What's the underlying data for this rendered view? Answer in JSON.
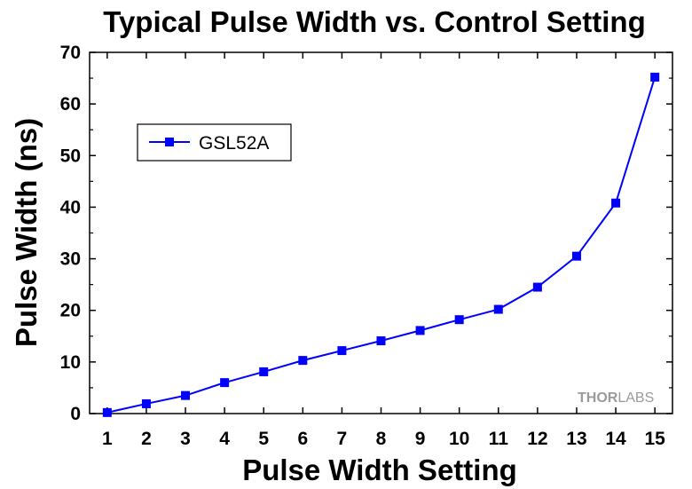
{
  "chart_data": {
    "type": "line",
    "title": "Typical Pulse Width vs. Control Setting",
    "xlabel": "Pulse Width Setting",
    "ylabel": "Pulse Width (ns)",
    "xlim": [
      0.55,
      15.45
    ],
    "ylim": [
      0,
      70
    ],
    "xticks": [
      1,
      2,
      3,
      4,
      5,
      6,
      7,
      8,
      9,
      10,
      11,
      12,
      13,
      14,
      15
    ],
    "yticks": [
      0,
      10,
      20,
      30,
      40,
      50,
      60,
      70
    ],
    "grid": false,
    "legend_position": "top-left",
    "series": [
      {
        "name": "GSL52A",
        "color": "#0000ff",
        "marker": "square",
        "x": [
          1,
          2,
          3,
          4,
          5,
          6,
          7,
          8,
          9,
          10,
          11,
          12,
          13,
          14,
          15
        ],
        "y": [
          0.2,
          1.9,
          3.5,
          6.0,
          8.1,
          10.3,
          12.2,
          14.1,
          16.1,
          18.2,
          20.2,
          24.5,
          30.5,
          40.8,
          65.2
        ]
      }
    ]
  },
  "watermark": {
    "part1": "THOR",
    "part2": "LABS"
  }
}
